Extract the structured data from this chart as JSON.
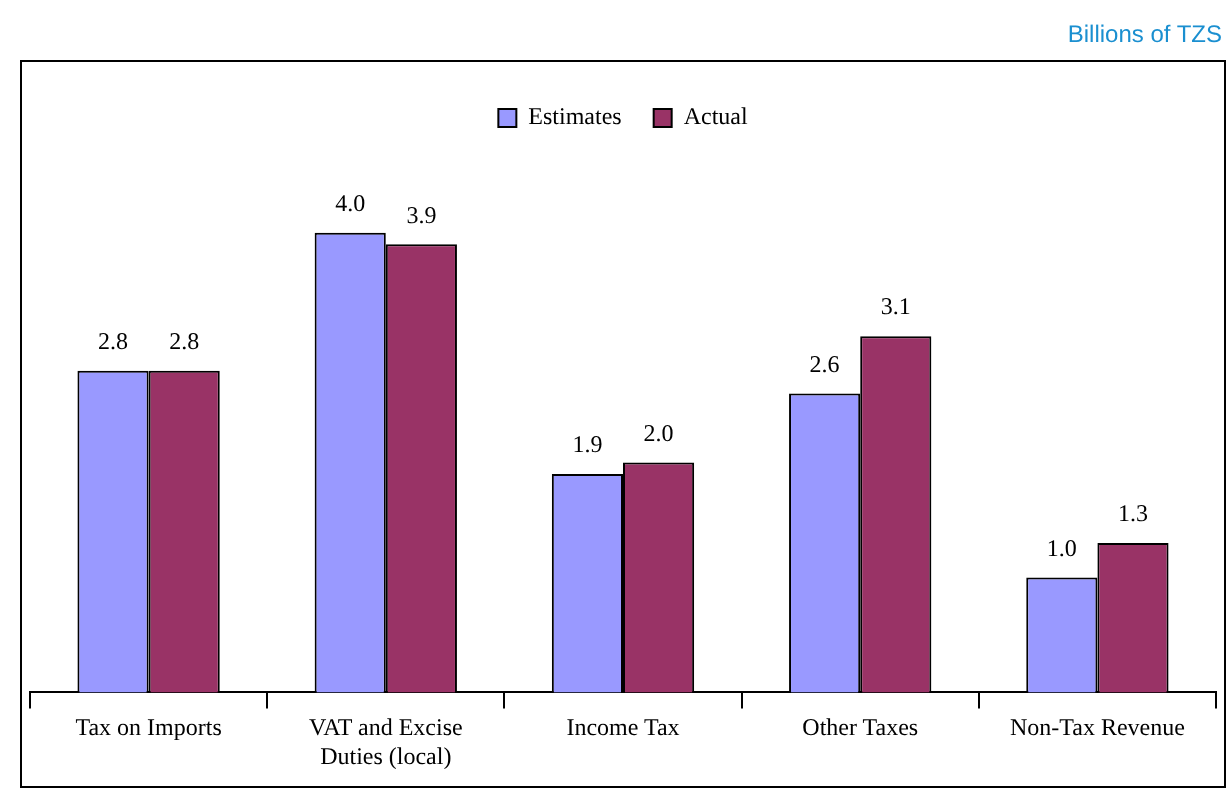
{
  "chart_data": {
    "type": "bar",
    "annotations": [
      "Billions of TZS"
    ],
    "categories": [
      "Tax on Imports",
      "VAT and Excise Duties (local)",
      "Income Tax",
      "Other Taxes",
      "Non-Tax Revenue"
    ],
    "series": [
      {
        "name": "Estimates",
        "color": "#9999ff",
        "values": [
          2.8,
          4.0,
          1.9,
          2.6,
          1.0
        ],
        "value_labels": [
          "2.8",
          "4.0",
          "1.9",
          "2.6",
          "1.0"
        ]
      },
      {
        "name": "Actual",
        "color": "#993366",
        "values": [
          2.8,
          3.9,
          2.0,
          3.1,
          1.3
        ],
        "value_labels": [
          "2.8",
          "3.9",
          "2.0",
          "3.1",
          "1.3"
        ]
      }
    ],
    "legend": "top",
    "grid": false
  }
}
